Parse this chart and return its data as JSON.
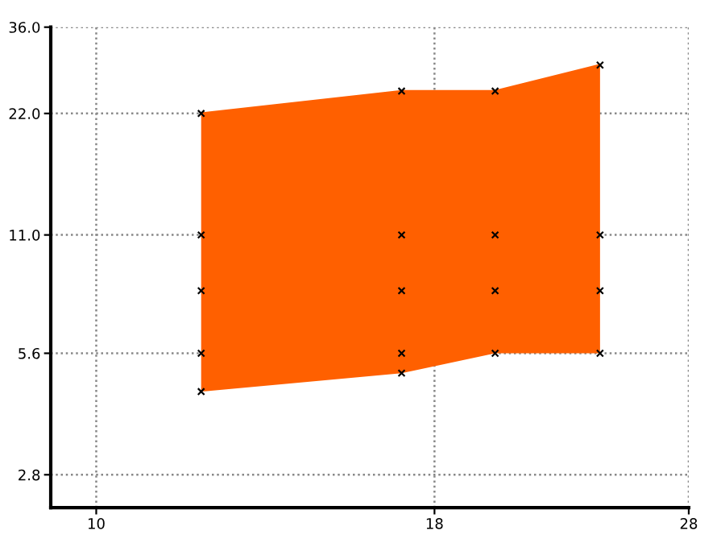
{
  "chart_data": {
    "type": "line",
    "log": "xy",
    "xlim": [
      9.24,
      28
    ],
    "ylim": [
      2.32,
      36
    ],
    "xticks": [
      10,
      18,
      28
    ],
    "yticks": [
      {
        "value": 2.8,
        "label": "2.8"
      },
      {
        "value": 5.6,
        "label": "5.6"
      },
      {
        "value": 11,
        "label": "11.0"
      },
      {
        "value": 22,
        "label": "22.0"
      },
      {
        "value": 36,
        "label": "36.0"
      }
    ],
    "grid": true,
    "series": [
      {
        "x": [
          12,
          17,
          20,
          24
        ],
        "values": [
          22,
          25,
          25,
          29
        ],
        "lower": [
          4.5,
          5,
          5.6,
          5.6
        ],
        "upper": [
          22,
          25,
          25,
          29
        ],
        "color": "#ff6000"
      },
      {
        "type": "scatter",
        "marker": "cross",
        "color": "#000000",
        "x": [
          12,
          12,
          12,
          12,
          12,
          17,
          17,
          17,
          17,
          17,
          20,
          20,
          20,
          20,
          24,
          24,
          24,
          24
        ],
        "values": [
          22,
          11,
          8,
          5.6,
          4.5,
          25,
          11,
          8,
          5.6,
          5,
          25,
          11,
          8,
          5.6,
          29,
          11,
          8,
          5.6
        ]
      }
    ]
  }
}
